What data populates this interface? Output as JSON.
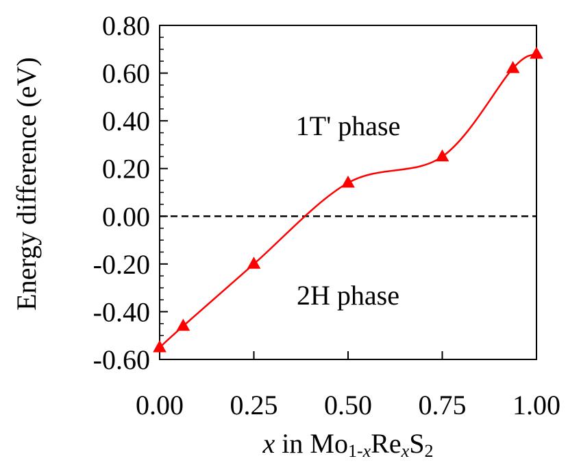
{
  "chart_data": {
    "type": "line",
    "title": "",
    "xlabel": {
      "var": "x",
      "in": " in ",
      "mo": "Mo",
      "sub1": "1-",
      "subx1": "x",
      "re": "Re",
      "subx2": "x",
      "s": "S",
      "sub2": "2"
    },
    "ylabel": "Energy difference (eV)",
    "xlim": [
      0,
      1
    ],
    "ylim": [
      -0.6,
      0.8
    ],
    "xticks": [
      "0.00",
      "0.25",
      "0.50",
      "0.75",
      "1.00"
    ],
    "xtick_values": [
      0,
      0.25,
      0.5,
      0.75,
      1.0
    ],
    "yticks": [
      "-0.60",
      "-0.40",
      "-0.20",
      "0.00",
      "0.20",
      "0.40",
      "0.60",
      "0.80"
    ],
    "ytick_values": [
      -0.6,
      -0.4,
      -0.2,
      0.0,
      0.2,
      0.4,
      0.6,
      0.8
    ],
    "series": [
      {
        "x": [
          0.0,
          0.0625,
          0.25,
          0.5,
          0.75,
          0.9375,
          1.0
        ],
        "y": [
          -0.55,
          -0.46,
          -0.2,
          0.14,
          0.25,
          0.62,
          0.68
        ],
        "color": "#ff0000",
        "marker": "triangle",
        "line": "smooth"
      }
    ],
    "reference_line": {
      "y": 0.0,
      "style": "dashed",
      "color": "#000000"
    },
    "annotations": [
      {
        "text": "1T' phase",
        "x": 0.5,
        "y": 0.38
      },
      {
        "text": "2H phase",
        "x": 0.5,
        "y": -0.33
      }
    ],
    "grid": false,
    "legend": "none"
  }
}
